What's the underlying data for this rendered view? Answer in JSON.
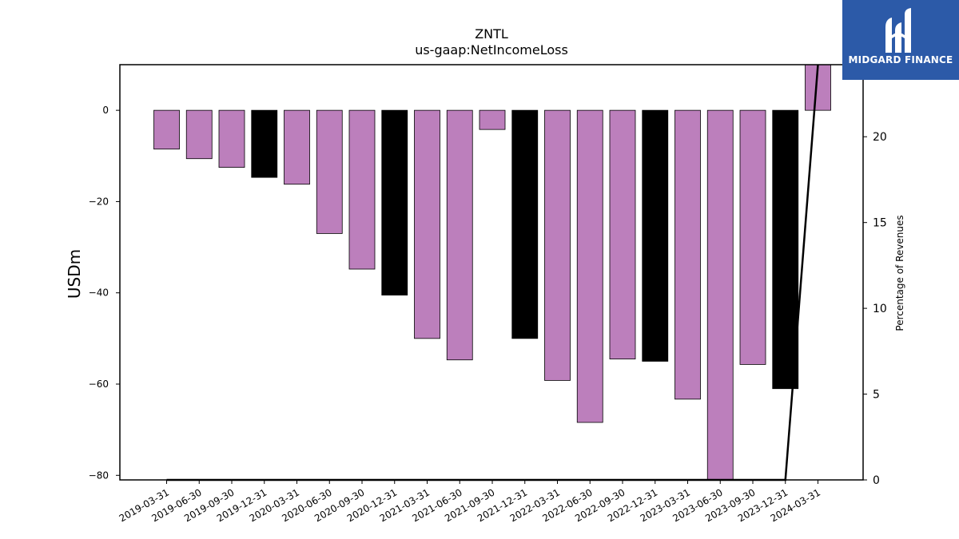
{
  "chart_data": {
    "type": "bar",
    "title": "ZNTL",
    "subtitle": "us-gaap:NetIncomeLoss",
    "ylabel": "USDm",
    "y2label": "Percentage of Revenues",
    "categories": [
      "2019-03-31",
      "2019-06-30",
      "2019-09-30",
      "2019-12-31",
      "2020-03-31",
      "2020-06-30",
      "2020-09-30",
      "2020-12-31",
      "2021-03-31",
      "2021-06-30",
      "2021-09-30",
      "2021-12-31",
      "2022-03-31",
      "2022-06-30",
      "2022-09-30",
      "2022-12-31",
      "2023-03-31",
      "2023-06-30",
      "2023-09-30",
      "2023-12-31",
      "2024-03-31"
    ],
    "values": [
      -8.5,
      -10.6,
      -12.5,
      -14.7,
      -16.2,
      -27.0,
      -34.8,
      -40.5,
      -50.0,
      -54.7,
      -4.2,
      -50.0,
      -59.2,
      -68.4,
      -54.5,
      -55.0,
      -63.3,
      -81.0,
      -55.7,
      -61.0,
      10.0
    ],
    "bar_colors": [
      "#bc7fbc",
      "#bc7fbc",
      "#bc7fbc",
      "#000000",
      "#bc7fbc",
      "#bc7fbc",
      "#bc7fbc",
      "#000000",
      "#bc7fbc",
      "#bc7fbc",
      "#bc7fbc",
      "#000000",
      "#bc7fbc",
      "#bc7fbc",
      "#bc7fbc",
      "#000000",
      "#bc7fbc",
      "#bc7fbc",
      "#bc7fbc",
      "#000000",
      "#bc7fbc"
    ],
    "ylim": [
      -81,
      10
    ],
    "yticks": [
      0,
      -20,
      -40,
      -60,
      -80
    ],
    "yticks_labels": [
      "0",
      "−20",
      "−40",
      "−60",
      "−80"
    ],
    "y2lim": [
      0,
      24.2
    ],
    "y2ticks": [
      0,
      5,
      10,
      15,
      20
    ],
    "y2ticks_labels": [
      "0",
      "5",
      "10",
      "15",
      "20"
    ],
    "line_series": {
      "values": [
        0,
        0,
        0,
        0,
        0,
        0,
        0,
        0,
        0,
        0,
        0,
        0,
        0,
        0,
        0,
        0,
        0,
        0,
        0,
        0,
        24.2
      ],
      "color": "#000000"
    },
    "grid": false
  },
  "logo": {
    "text": "MIDGARD FINANCE",
    "background": "#2c5aa8"
  }
}
